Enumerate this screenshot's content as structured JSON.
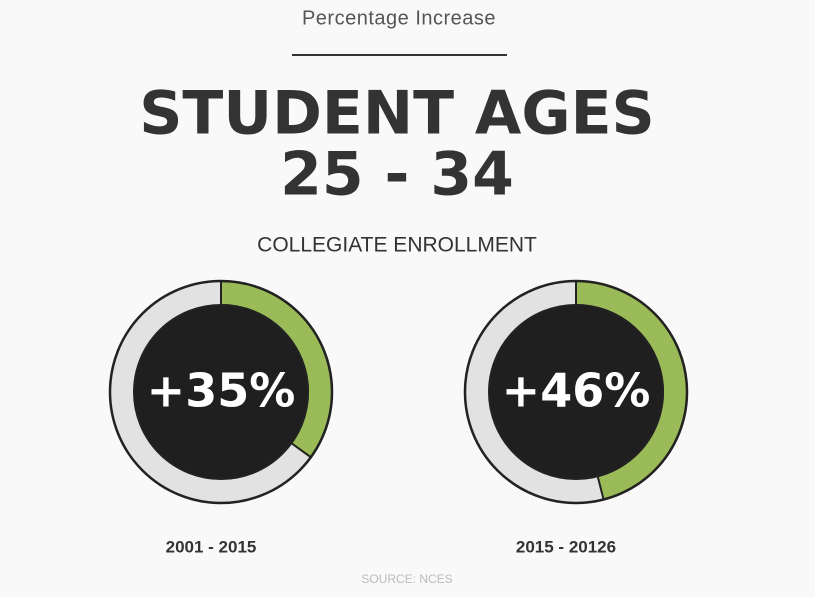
{
  "header": {
    "kicker": "Percentage Increase",
    "title": "STUDENT AGES",
    "title_line2": "25 - 34",
    "subtitle": "COLLEGIATE ENROLLMENT"
  },
  "chart_data": [
    {
      "type": "donut",
      "values": [
        35
      ],
      "value_labels": [
        "+35%"
      ],
      "caption": "2001 - 2015",
      "color": "#9bbb59",
      "track_color": "#e2e2e2"
    },
    {
      "type": "donut",
      "values": [
        46
      ],
      "value_labels": [
        "+46%"
      ],
      "caption": "2015 - 20126",
      "color": "#9bbb59",
      "track_color": "#e2e2e2"
    }
  ],
  "source": "SOURCE: NCES"
}
